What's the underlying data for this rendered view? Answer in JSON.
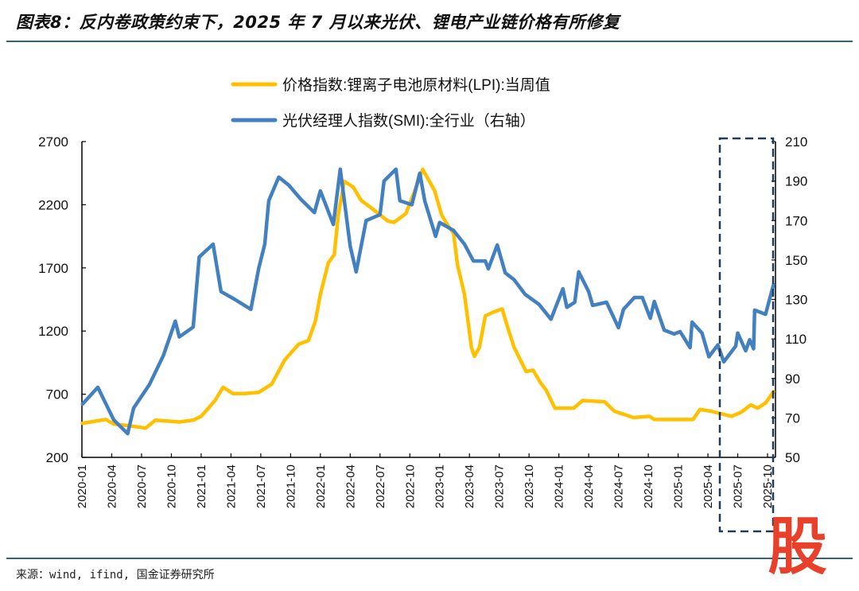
{
  "title": "图表8：反内卷政策约束下，2025 年 7 月以来光伏、锂电产业链价格有所修复",
  "source": "来源：wind, ifind, 国金证券研究所",
  "watermark_logo": "股",
  "colors": {
    "lpi": "#FFC000",
    "smi": "#4380BF",
    "highlight_box": "#1F3A5A",
    "rule": "#2F6180",
    "logo": "#E8402B"
  },
  "chart_data": {
    "type": "line",
    "title": "",
    "xlabel": "",
    "ylabel": "",
    "x_range": [
      "2020-01-01",
      "2025-10-25"
    ],
    "x_ticks": [
      "2020-01",
      "2020-04",
      "2020-07",
      "2020-10",
      "2021-01",
      "2021-04",
      "2021-07",
      "2021-10",
      "2022-01",
      "2022-04",
      "2022-07",
      "2022-10",
      "2023-01",
      "2023-04",
      "2023-07",
      "2023-10",
      "2024-01",
      "2024-04",
      "2024-07",
      "2024-10",
      "2025-01",
      "2025-04",
      "2025-07",
      "2025-10"
    ],
    "y_left": {
      "range": [
        200,
        2700
      ],
      "ticks": [
        "2700",
        "2200",
        "1700",
        "1200",
        "700",
        "200"
      ]
    },
    "y_right": {
      "range": [
        50,
        210
      ],
      "ticks": [
        "210",
        "190",
        "170",
        "150",
        "130",
        "110",
        "90",
        "70",
        "50"
      ]
    },
    "grid": false,
    "legend_position": "top-center",
    "highlight_region": {
      "from": "2025-05",
      "to": "2025-10",
      "style": "dashed box"
    },
    "series": [
      {
        "name": "价格指数:锂离子电池原材料(LPI):当周值",
        "axis": "left",
        "color": "#FFC000",
        "points": [
          [
            "2020-01-03",
            470
          ],
          [
            "2020-03-13",
            500
          ],
          [
            "2020-04-07",
            464
          ],
          [
            "2020-05-25",
            450
          ],
          [
            "2020-07-13",
            432
          ],
          [
            "2020-08-13",
            495
          ],
          [
            "2020-10-25",
            480
          ],
          [
            "2020-12-07",
            495
          ],
          [
            "2021-01-01",
            525
          ],
          [
            "2021-02-13",
            650
          ],
          [
            "2021-03-07",
            755
          ],
          [
            "2021-04-07",
            705
          ],
          [
            "2021-05-13",
            705
          ],
          [
            "2021-06-25",
            715
          ],
          [
            "2021-08-04",
            780
          ],
          [
            "2021-09-13",
            970
          ],
          [
            "2021-10-25",
            1095
          ],
          [
            "2021-11-25",
            1125
          ],
          [
            "2021-12-16",
            1280
          ],
          [
            "2022-01-01",
            1490
          ],
          [
            "2022-01-25",
            1740
          ],
          [
            "2022-02-13",
            1805
          ],
          [
            "2022-02-25",
            2120
          ],
          [
            "2022-03-13",
            2385
          ],
          [
            "2022-04-10",
            2340
          ],
          [
            "2022-05-04",
            2235
          ],
          [
            "2022-06-07",
            2170
          ],
          [
            "2022-07-25",
            2070
          ],
          [
            "2022-08-13",
            2060
          ],
          [
            "2022-09-19",
            2130
          ],
          [
            "2022-10-13",
            2290
          ],
          [
            "2022-11-10",
            2480
          ],
          [
            "2022-12-16",
            2310
          ],
          [
            "2023-01-07",
            2120
          ],
          [
            "2023-01-25",
            2040
          ],
          [
            "2023-02-13",
            1975
          ],
          [
            "2023-02-25",
            1725
          ],
          [
            "2023-03-16",
            1490
          ],
          [
            "2023-04-07",
            1070
          ],
          [
            "2023-04-16",
            1000
          ],
          [
            "2023-05-01",
            1070
          ],
          [
            "2023-05-19",
            1320
          ],
          [
            "2023-06-13",
            1350
          ],
          [
            "2023-07-10",
            1375
          ],
          [
            "2023-07-25",
            1240
          ],
          [
            "2023-08-16",
            1070
          ],
          [
            "2023-09-22",
            880
          ],
          [
            "2023-10-13",
            890
          ],
          [
            "2023-11-07",
            785
          ],
          [
            "2023-11-22",
            735
          ],
          [
            "2023-12-19",
            590
          ],
          [
            "2024-02-16",
            590
          ],
          [
            "2024-03-13",
            650
          ],
          [
            "2024-05-19",
            640
          ],
          [
            "2024-06-19",
            565
          ],
          [
            "2024-08-16",
            515
          ],
          [
            "2024-10-04",
            525
          ],
          [
            "2024-10-19",
            500
          ],
          [
            "2024-12-25",
            500
          ],
          [
            "2025-02-16",
            500
          ],
          [
            "2025-03-07",
            580
          ],
          [
            "2025-04-10",
            565
          ],
          [
            "2025-06-13",
            525
          ],
          [
            "2025-07-13",
            560
          ],
          [
            "2025-08-10",
            615
          ],
          [
            "2025-09-01",
            590
          ],
          [
            "2025-09-25",
            630
          ],
          [
            "2025-10-19",
            720
          ]
        ]
      },
      {
        "name": "光伏经理人指数(SMI):全行业（右轴）",
        "axis": "right",
        "color": "#4380BF",
        "points": [
          [
            "2020-01-03",
            77
          ],
          [
            "2020-02-19",
            85.5
          ],
          [
            "2020-04-07",
            69
          ],
          [
            "2020-05-19",
            62
          ],
          [
            "2020-06-07",
            75
          ],
          [
            "2020-07-01",
            81
          ],
          [
            "2020-07-25",
            87
          ],
          [
            "2020-09-07",
            101.6
          ],
          [
            "2020-10-13",
            119
          ],
          [
            "2020-10-25",
            111
          ],
          [
            "2020-12-07",
            116
          ],
          [
            "2020-12-25",
            151.5
          ],
          [
            "2021-02-07",
            158
          ],
          [
            "2021-03-01",
            134
          ],
          [
            "2021-04-13",
            130
          ],
          [
            "2021-06-01",
            125
          ],
          [
            "2021-06-25",
            146
          ],
          [
            "2021-07-13",
            158
          ],
          [
            "2021-07-25",
            180
          ],
          [
            "2021-08-25",
            192
          ],
          [
            "2021-09-25",
            188
          ],
          [
            "2021-11-01",
            181
          ],
          [
            "2021-12-13",
            174
          ],
          [
            "2022-01-01",
            185
          ],
          [
            "2022-02-10",
            168
          ],
          [
            "2022-03-01",
            196
          ],
          [
            "2022-04-01",
            157
          ],
          [
            "2022-04-19",
            144
          ],
          [
            "2022-05-19",
            170
          ],
          [
            "2022-07-01",
            173
          ],
          [
            "2022-07-13",
            190
          ],
          [
            "2022-08-19",
            196
          ],
          [
            "2022-09-01",
            180
          ],
          [
            "2022-10-07",
            178
          ],
          [
            "2022-11-01",
            194
          ],
          [
            "2022-11-16",
            180
          ],
          [
            "2022-12-19",
            162
          ],
          [
            "2023-01-01",
            169
          ],
          [
            "2023-02-13",
            165
          ],
          [
            "2023-03-16",
            158
          ],
          [
            "2023-04-13",
            149.5
          ],
          [
            "2023-05-19",
            149.5
          ],
          [
            "2023-05-28",
            145.5
          ],
          [
            "2023-06-25",
            157.6
          ],
          [
            "2023-07-19",
            143.5
          ],
          [
            "2023-08-16",
            140
          ],
          [
            "2023-09-19",
            132.6
          ],
          [
            "2023-11-01",
            127.5
          ],
          [
            "2023-12-07",
            120
          ],
          [
            "2024-01-13",
            135.4
          ],
          [
            "2024-01-25",
            126
          ],
          [
            "2024-02-19",
            128.6
          ],
          [
            "2024-03-01",
            144
          ],
          [
            "2024-04-01",
            134
          ],
          [
            "2024-04-13",
            127
          ],
          [
            "2024-05-25",
            128.6
          ],
          [
            "2024-07-01",
            115.7
          ],
          [
            "2024-07-16",
            125
          ],
          [
            "2024-08-19",
            131
          ],
          [
            "2024-09-13",
            131
          ],
          [
            "2024-10-07",
            120.5
          ],
          [
            "2024-10-19",
            129
          ],
          [
            "2024-11-19",
            114.5
          ],
          [
            "2024-12-19",
            112.5
          ],
          [
            "2025-01-07",
            113.7
          ],
          [
            "2025-02-07",
            105.6
          ],
          [
            "2025-02-13",
            118.5
          ],
          [
            "2025-03-13",
            113
          ],
          [
            "2025-04-04",
            101
          ],
          [
            "2025-05-01",
            107
          ],
          [
            "2025-05-19",
            98.4
          ],
          [
            "2025-06-25",
            106.4
          ],
          [
            "2025-07-01",
            113
          ],
          [
            "2025-07-25",
            104
          ],
          [
            "2025-08-07",
            109.6
          ],
          [
            "2025-08-19",
            105
          ],
          [
            "2025-08-22",
            124.6
          ],
          [
            "2025-09-25",
            122.5
          ],
          [
            "2025-10-19",
            137.5
          ]
        ]
      }
    ]
  }
}
